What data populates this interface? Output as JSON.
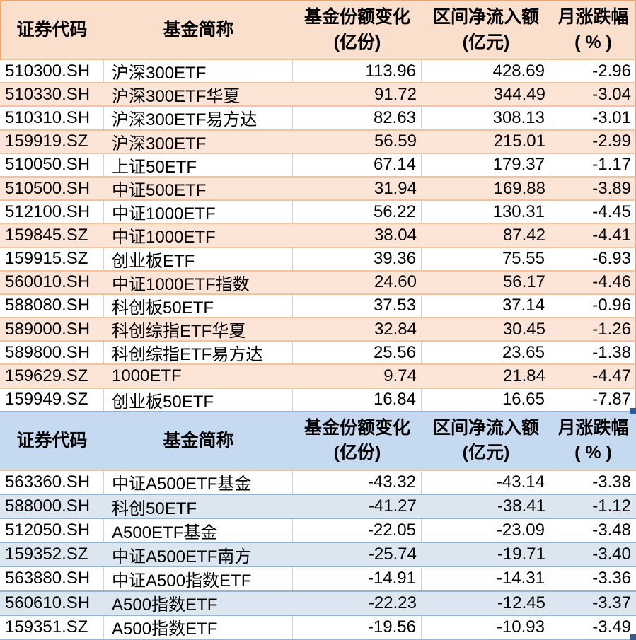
{
  "table": {
    "columns": [
      {
        "label": "证券代码",
        "sub": ""
      },
      {
        "label": "基金简称",
        "sub": ""
      },
      {
        "label": "基金份额变化",
        "sub": "(亿份)"
      },
      {
        "label": "区间净流入额",
        "sub": "(亿元)"
      },
      {
        "label": "月涨跌幅",
        "sub": "( % )"
      }
    ],
    "sections": [
      {
        "name": "net-inflow",
        "rows": [
          [
            "510300.SH",
            "沪深300ETF",
            "113.96",
            "428.69",
            "-2.96"
          ],
          [
            "510330.SH",
            "沪深300ETF华夏",
            "91.72",
            "344.49",
            "-3.04"
          ],
          [
            "510310.SH",
            "沪深300ETF易方达",
            "82.63",
            "308.13",
            "-3.01"
          ],
          [
            "159919.SZ",
            "沪深300ETF",
            "56.59",
            "215.01",
            "-2.99"
          ],
          [
            "510050.SH",
            "上证50ETF",
            "67.14",
            "179.37",
            "-1.17"
          ],
          [
            "510500.SH",
            "中证500ETF",
            "31.94",
            "169.88",
            "-3.89"
          ],
          [
            "512100.SH",
            "中证1000ETF",
            "56.22",
            "130.31",
            "-4.45"
          ],
          [
            "159845.SZ",
            "中证1000ETF",
            "38.04",
            "87.42",
            "-4.41"
          ],
          [
            "159915.SZ",
            "创业板ETF",
            "39.36",
            "75.55",
            "-6.93"
          ],
          [
            "560010.SH",
            "中证1000ETF指数",
            "24.60",
            "56.17",
            "-4.46"
          ],
          [
            "588080.SH",
            "科创板50ETF",
            "37.53",
            "37.14",
            "-0.96"
          ],
          [
            "589000.SH",
            "科创综指ETF华夏",
            "32.84",
            "30.45",
            "-1.26"
          ],
          [
            "589800.SH",
            "科创综指ETF易方达",
            "25.56",
            "23.65",
            "-1.38"
          ],
          [
            "159629.SZ",
            "1000ETF",
            "9.74",
            "21.84",
            "-4.47"
          ],
          [
            "159949.SZ",
            "创业板50ETF",
            "16.84",
            "16.65",
            "-7.87"
          ]
        ]
      },
      {
        "name": "net-outflow",
        "rows": [
          [
            "563360.SH",
            "中证A500ETF基金",
            "-43.32",
            "-43.14",
            "-3.38"
          ],
          [
            "588000.SH",
            "科创50ETF",
            "-41.27",
            "-38.41",
            "-1.12"
          ],
          [
            "512050.SH",
            "A500ETF基金",
            "-22.05",
            "-23.09",
            "-3.48"
          ],
          [
            "159352.SZ",
            "中证A500ETF南方",
            "-25.74",
            "-19.71",
            "-3.40"
          ],
          [
            "563880.SH",
            "中证A500指数ETF",
            "-14.91",
            "-14.31",
            "-3.36"
          ],
          [
            "560610.SH",
            "A500指数ETF",
            "-22.23",
            "-12.45",
            "-3.37"
          ],
          [
            "159351.SZ",
            "A500指数ETF",
            "-19.56",
            "-10.93",
            "-3.49"
          ]
        ]
      }
    ]
  },
  "colors": {
    "inflow_header_bg": "#FBDFCD",
    "inflow_stripe_bg": "#FCE4D6",
    "inflow_row_border": "#F2C39C",
    "inflow_outer_border": "#EBA673",
    "outflow_header_bg": "#C5D9F1",
    "outflow_stripe_bg": "#DCE6F1",
    "outflow_row_border": "#95B3D7",
    "gridline": "#D2D2D2",
    "selection_handle": "#2E5B9C"
  }
}
